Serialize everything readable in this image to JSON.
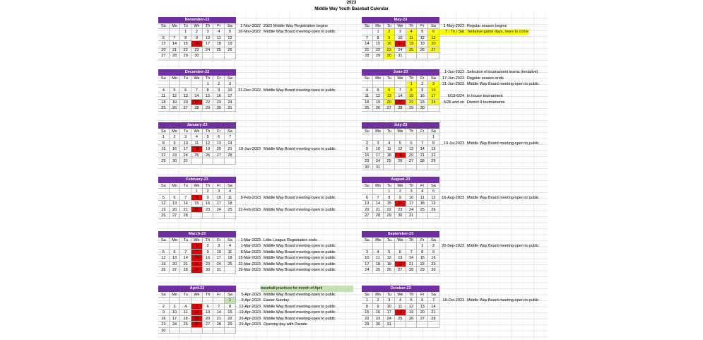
{
  "title_year": "2023",
  "title": "Middle Way Youth Baseball Calendar",
  "weekdays": [
    "Su",
    "Mo",
    "Tu",
    "We",
    "Th",
    "Fr",
    "Sa"
  ],
  "months": [
    {
      "name": "November-22",
      "weeks": [
        [
          "",
          "",
          "1",
          "2",
          "3",
          "4",
          "5"
        ],
        [
          "6",
          "7",
          "8",
          "9",
          "10",
          "11",
          "12"
        ],
        [
          "13",
          "14",
          "15",
          "16",
          "17",
          "18",
          "19"
        ],
        [
          "20",
          "21",
          "22",
          "23",
          "24",
          "25",
          "26"
        ],
        [
          "27",
          "28",
          "29",
          "30",
          "",
          "",
          ""
        ]
      ],
      "red": [
        "16"
      ],
      "yellow": []
    },
    {
      "name": "December-22",
      "weeks": [
        [
          "",
          "",
          "",
          "",
          "1",
          "2",
          "3"
        ],
        [
          "4",
          "5",
          "6",
          "7",
          "8",
          "9",
          "10"
        ],
        [
          "11",
          "12",
          "13",
          "14",
          "15",
          "16",
          "17"
        ],
        [
          "18",
          "19",
          "20",
          "21",
          "22",
          "23",
          "24"
        ],
        [
          "25",
          "26",
          "27",
          "28",
          "29",
          "30",
          "31"
        ]
      ],
      "red": [
        "21"
      ],
      "yellow": []
    },
    {
      "name": "January-23",
      "weeks": [
        [
          "1",
          "2",
          "3",
          "4",
          "5",
          "6",
          "7"
        ],
        [
          "8",
          "9",
          "10",
          "11",
          "12",
          "13",
          "14"
        ],
        [
          "15",
          "16",
          "17",
          "18",
          "19",
          "20",
          "21"
        ],
        [
          "22",
          "23",
          "24",
          "25",
          "26",
          "27",
          "28"
        ],
        [
          "29",
          "30",
          "31",
          "",
          "",
          "",
          ""
        ]
      ],
      "red": [
        "18"
      ],
      "yellow": []
    },
    {
      "name": "February-23",
      "weeks": [
        [
          "",
          "",
          "",
          "1",
          "2",
          "3",
          "4"
        ],
        [
          "5",
          "6",
          "7",
          "8",
          "9",
          "10",
          "11"
        ],
        [
          "12",
          "13",
          "14",
          "15",
          "16",
          "17",
          "18"
        ],
        [
          "19",
          "20",
          "21",
          "22",
          "23",
          "24",
          "25"
        ],
        [
          "26",
          "27",
          "28",
          "",
          "",
          "",
          ""
        ]
      ],
      "red": [
        "8",
        "22"
      ],
      "yellow": []
    },
    {
      "name": "March-23",
      "weeks": [
        [
          "",
          "",
          "",
          "1",
          "2",
          "3",
          "4"
        ],
        [
          "5",
          "6",
          "7",
          "8",
          "9",
          "10",
          "11"
        ],
        [
          "12",
          "13",
          "14",
          "15",
          "16",
          "17",
          "18"
        ],
        [
          "19",
          "20",
          "21",
          "22",
          "23",
          "24",
          "25"
        ],
        [
          "26",
          "27",
          "28",
          "29",
          "30",
          "31",
          ""
        ]
      ],
      "red": [
        "1",
        "8",
        "15",
        "22",
        "29"
      ],
      "yellow": []
    },
    {
      "name": "April-23",
      "weeks": [
        [
          "",
          "",
          "",
          "",
          "",
          "",
          "1"
        ],
        [
          "2",
          "3",
          "4",
          "5",
          "6",
          "7",
          "8"
        ],
        [
          "9",
          "10",
          "11",
          "12",
          "13",
          "14",
          "15"
        ],
        [
          "16",
          "17",
          "18",
          "19",
          "20",
          "21",
          "22"
        ],
        [
          "23",
          "24",
          "25",
          "26",
          "27",
          "28",
          "29"
        ],
        [
          "30",
          "",
          "",
          "",
          "",
          "",
          ""
        ]
      ],
      "red": [
        "5",
        "12",
        "19",
        "26"
      ],
      "yellow": [],
      "green": [
        "1"
      ]
    },
    {
      "name": "May-23",
      "weeks": [
        [
          "",
          "1",
          "2",
          "3",
          "4",
          "5",
          "6"
        ],
        [
          "7",
          "8",
          "9",
          "10",
          "11",
          "12",
          "13"
        ],
        [
          "14",
          "15",
          "16",
          "17",
          "18",
          "19",
          "20"
        ],
        [
          "21",
          "22",
          "23",
          "24",
          "25",
          "26",
          "27"
        ],
        [
          "28",
          "29",
          "30",
          "31",
          "",
          "",
          ""
        ]
      ],
      "red": [
        "17"
      ],
      "yellow": [
        "2",
        "4",
        "6",
        "9",
        "11",
        "13",
        "16",
        "18",
        "20",
        "23",
        "25",
        "27",
        "30"
      ]
    },
    {
      "name": "June-23",
      "weeks": [
        [
          "",
          "",
          "",
          "",
          "1",
          "2",
          "3"
        ],
        [
          "4",
          "5",
          "6",
          "7",
          "8",
          "9",
          "10"
        ],
        [
          "11",
          "12",
          "13",
          "14",
          "15",
          "16",
          "17"
        ],
        [
          "18",
          "19",
          "20",
          "21",
          "22",
          "23",
          "24"
        ],
        [
          "25",
          "26",
          "27",
          "28",
          "29",
          "30",
          ""
        ]
      ],
      "red": [
        "21"
      ],
      "yellow": [
        "1",
        "3",
        "6",
        "8",
        "10",
        "13",
        "15",
        "17",
        "20",
        "22",
        "24"
      ]
    },
    {
      "name": "July-23",
      "weeks": [
        [
          "",
          "",
          "",
          "",
          "",
          "",
          "1"
        ],
        [
          "2",
          "3",
          "4",
          "5",
          "6",
          "7",
          "8"
        ],
        [
          "9",
          "10",
          "11",
          "12",
          "13",
          "14",
          "15"
        ],
        [
          "16",
          "17",
          "18",
          "19",
          "20",
          "21",
          "22"
        ],
        [
          "23",
          "24",
          "25",
          "26",
          "27",
          "28",
          "29"
        ],
        [
          "30",
          "31",
          "",
          "",
          "",
          "",
          ""
        ]
      ],
      "red": [
        "19"
      ],
      "yellow": []
    },
    {
      "name": "August-23",
      "weeks": [
        [
          "",
          "",
          "1",
          "2",
          "3",
          "4",
          "5"
        ],
        [
          "6",
          "7",
          "8",
          "9",
          "10",
          "11",
          "12"
        ],
        [
          "13",
          "14",
          "15",
          "16",
          "17",
          "18",
          "19"
        ],
        [
          "20",
          "21",
          "22",
          "23",
          "24",
          "25",
          "26"
        ],
        [
          "27",
          "28",
          "29",
          "30",
          "31",
          "",
          ""
        ]
      ],
      "red": [
        "16"
      ],
      "yellow": []
    },
    {
      "name": "September-23",
      "weeks": [
        [
          "",
          "",
          "",
          "",
          "",
          "1",
          "2"
        ],
        [
          "3",
          "4",
          "5",
          "6",
          "7",
          "8",
          "9"
        ],
        [
          "10",
          "11",
          "12",
          "13",
          "14",
          "15",
          "16"
        ],
        [
          "17",
          "18",
          "19",
          "20",
          "21",
          "22",
          "23"
        ],
        [
          "24",
          "25",
          "26",
          "27",
          "28",
          "29",
          "30"
        ]
      ],
      "red": [
        "20"
      ],
      "yellow": []
    },
    {
      "name": "October-23",
      "weeks": [
        [
          "1",
          "2",
          "3",
          "4",
          "5",
          "6",
          "7"
        ],
        [
          "8",
          "9",
          "10",
          "11",
          "12",
          "13",
          "14"
        ],
        [
          "15",
          "16",
          "17",
          "18",
          "19",
          "20",
          "21"
        ],
        [
          "22",
          "23",
          "24",
          "25",
          "26",
          "27",
          "28"
        ],
        [
          "29",
          "30",
          "31",
          "",
          "",
          "",
          ""
        ]
      ],
      "red": [
        "18"
      ],
      "yellow": []
    }
  ],
  "events_left": [
    [
      {
        "row": 1,
        "date": "1-Nov-2022",
        "text": "2023 Middle Way Registration begins"
      },
      {
        "row": 2,
        "date": "16-Nov-2022",
        "text": "Middle Way Board meeting-open to public"
      }
    ],
    [
      {
        "row": 3,
        "date": "21-Dec-2022",
        "text": "Middle Way Board meeting-open to public"
      }
    ],
    [
      {
        "row": 4,
        "date": "18-Jan-2023",
        "text": "Middle Way Board meeting-open to public"
      }
    ],
    [
      {
        "row": 3,
        "date": "8-Feb-2023",
        "text": "Middle Way Board meeting-open to public"
      },
      {
        "row": 5,
        "date": "22-Feb-2023",
        "text": "Middle Way Board meeting-open to public"
      }
    ],
    [
      {
        "row": 1,
        "date": "1-Mar-2023",
        "text": "Little League Registration ends"
      },
      {
        "row": 2,
        "date": "1-Mar-2023",
        "text": "Middle Way Board meeting-open to public"
      },
      {
        "row": 3,
        "date": "8-Mar-2023",
        "text": "Middle Way Board meeting-open to public"
      },
      {
        "row": 4,
        "date": "15-Mar-2023",
        "text": "Middle Way Board meeting-open to public"
      },
      {
        "row": 5,
        "date": "22-Mar-2023",
        "text": "Middle Way Board meeting-open to public"
      },
      {
        "row": 6,
        "date": "29-Mar-2023",
        "text": "Middle Way Board meeting-open to public"
      }
    ],
    [
      {
        "row": 0,
        "date": "",
        "text": "baseball practices for month of April",
        "green": true
      },
      {
        "row": 1,
        "date": "5-Apr-2023",
        "text": "Middle Way Board meeting-open to public"
      },
      {
        "row": 2,
        "date": "9-Apr-2023",
        "text": "Easter Sunday"
      },
      {
        "row": 3,
        "date": "12-Apr-2023",
        "text": "Middle Way Board meeting-open to public"
      },
      {
        "row": 4,
        "date": "19-Apr-2023",
        "text": "Middle Way Board meeting-open to public"
      },
      {
        "row": 5,
        "date": "26-Apr-2023",
        "text": "Middle Way Board meeting-open to public"
      },
      {
        "row": 6,
        "date": "29-Apr-2023",
        "text": "Opening day with Parade"
      }
    ]
  ],
  "events_right": [
    [
      {
        "row": 1,
        "date": "1-May-2023",
        "text": "Regular season begins"
      },
      {
        "row": 2,
        "date": "T / Th / Sat",
        "text": "Tentative game days, more to come",
        "yellow": true
      }
    ],
    [
      {
        "row": 0,
        "date": "1-Jun-2023",
        "text": "Selection of tournament teams (tentative)"
      },
      {
        "row": 1,
        "date": "17-Jun-2023",
        "text": "Regular season ends"
      },
      {
        "row": 2,
        "date": "21-Jun-2023",
        "text": "Middle Way Board meeting-open to public"
      },
      {
        "row": 4,
        "date": "6/19-6/24",
        "text": "In house tournament"
      },
      {
        "row": 5,
        "date": "6/26 and on",
        "text": "District 9 tournaments"
      }
    ],
    [
      {
        "row": 3,
        "date": "19-Jul-2023",
        "text": "Middle Way Board meeting-open to public"
      }
    ],
    [
      {
        "row": 3,
        "date": "16-Aug-2023",
        "text": "Middle Way Board meeting-open to public"
      }
    ],
    [
      {
        "row": 2,
        "date": "20-Sep-2023",
        "text": "Middle Way Board meeting-open to public"
      }
    ],
    [
      {
        "row": 2,
        "date": "18-Oct-2023",
        "text": "Middle Way Board meeting-open to public"
      }
    ]
  ]
}
